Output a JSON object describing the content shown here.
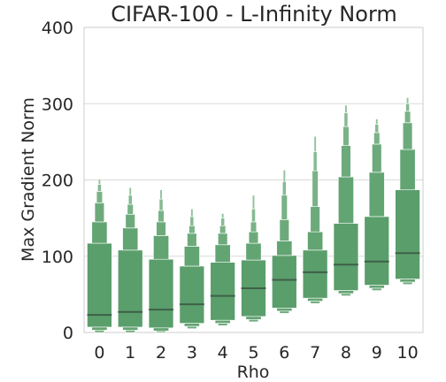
{
  "chart_data": {
    "type": "boxen",
    "title": "CIFAR-100 - L-Infinity Norm",
    "xlabel": "Rho",
    "ylabel": "Max Gradient Norm",
    "ylim": [
      0,
      400
    ],
    "yticks": [
      0,
      100,
      200,
      300,
      400
    ],
    "grid": true,
    "color": "#5a9e6b",
    "median_color": "#3f5f48",
    "categories": [
      "0",
      "1",
      "2",
      "3",
      "4",
      "5",
      "6",
      "7",
      "8",
      "9",
      "10"
    ],
    "boxes": [
      {
        "x": "0",
        "median": 23,
        "levels": [
          [
            7,
            117
          ],
          [
            117,
            145
          ],
          [
            145,
            170
          ],
          [
            170,
            185
          ],
          [
            185,
            194
          ],
          [
            194,
            201
          ]
        ]
      },
      {
        "x": "1",
        "median": 27,
        "levels": [
          [
            7,
            108
          ],
          [
            108,
            137
          ],
          [
            137,
            155
          ],
          [
            155,
            168
          ],
          [
            168,
            180
          ],
          [
            180,
            190
          ]
        ]
      },
      {
        "x": "2",
        "median": 30,
        "levels": [
          [
            6,
            96
          ],
          [
            96,
            127
          ],
          [
            127,
            145
          ],
          [
            145,
            160
          ],
          [
            160,
            175
          ],
          [
            175,
            187
          ]
        ]
      },
      {
        "x": "3",
        "median": 37,
        "levels": [
          [
            12,
            87
          ],
          [
            87,
            113
          ],
          [
            113,
            130
          ],
          [
            130,
            140
          ],
          [
            140,
            152
          ],
          [
            152,
            162
          ]
        ]
      },
      {
        "x": "4",
        "median": 48,
        "levels": [
          [
            16,
            92
          ],
          [
            92,
            115
          ],
          [
            115,
            130
          ],
          [
            130,
            140
          ],
          [
            140,
            150
          ],
          [
            150,
            156
          ]
        ]
      },
      {
        "x": "5",
        "median": 58,
        "levels": [
          [
            21,
            95
          ],
          [
            95,
            117
          ],
          [
            117,
            132
          ],
          [
            132,
            145
          ],
          [
            145,
            162
          ],
          [
            162,
            180
          ]
        ]
      },
      {
        "x": "6",
        "median": 69,
        "levels": [
          [
            32,
            101
          ],
          [
            101,
            120
          ],
          [
            120,
            148
          ],
          [
            148,
            180
          ],
          [
            180,
            198
          ],
          [
            198,
            213
          ]
        ]
      },
      {
        "x": "7",
        "median": 79,
        "levels": [
          [
            45,
            108
          ],
          [
            108,
            132
          ],
          [
            132,
            165
          ],
          [
            165,
            212
          ],
          [
            212,
            237
          ],
          [
            237,
            257
          ]
        ]
      },
      {
        "x": "8",
        "median": 89,
        "levels": [
          [
            55,
            143
          ],
          [
            143,
            204
          ],
          [
            204,
            245
          ],
          [
            245,
            270
          ],
          [
            270,
            288
          ],
          [
            288,
            298
          ]
        ]
      },
      {
        "x": "9",
        "median": 93,
        "levels": [
          [
            62,
            152
          ],
          [
            152,
            210
          ],
          [
            210,
            247
          ],
          [
            247,
            262
          ],
          [
            262,
            273
          ],
          [
            273,
            280
          ]
        ]
      },
      {
        "x": "10",
        "median": 104,
        "levels": [
          [
            70,
            187
          ],
          [
            187,
            240
          ],
          [
            240,
            275
          ],
          [
            275,
            290
          ],
          [
            290,
            300
          ],
          [
            300,
            308
          ]
        ]
      }
    ]
  }
}
